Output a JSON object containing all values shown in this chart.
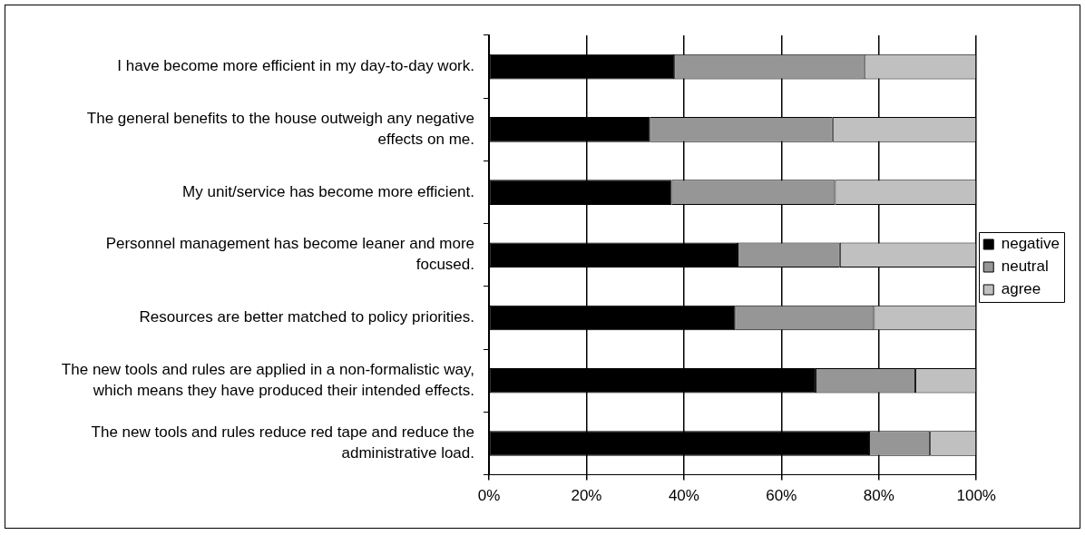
{
  "chart_data": {
    "type": "bar",
    "orientation": "horizontal",
    "stacked": true,
    "categories": [
      "I have become more efficient in my day-to-day work.",
      "The general benefits to the house outweigh any negative effects on me.",
      "My unit/service has become more efficient.",
      "Personnel management has become leaner and more focused.",
      "Resources are better matched to policy priorities.",
      "The new tools and rules are applied in a non-formalistic way, which means they have produced their intended effects.",
      "The new tools and rules reduce red tape and reduce the administrative load."
    ],
    "series": [
      {
        "name": "negative",
        "color": "#000000",
        "values": [
          38,
          33,
          37.5,
          51,
          50.5,
          67,
          78
        ]
      },
      {
        "name": "neutral",
        "color": "#969696",
        "values": [
          39,
          37.5,
          33.5,
          21,
          28.5,
          20.5,
          12.5
        ]
      },
      {
        "name": "agree",
        "color": "#c0c0c0",
        "values": [
          23,
          29.5,
          29,
          28,
          21,
          12.5,
          9.5
        ]
      }
    ],
    "xlim": [
      0,
      100
    ],
    "xticks": [
      {
        "value": 0,
        "label": "0%"
      },
      {
        "value": 20,
        "label": "20%"
      },
      {
        "value": 40,
        "label": "40%"
      },
      {
        "value": 60,
        "label": "60%"
      },
      {
        "value": 80,
        "label": "80%"
      },
      {
        "value": 100,
        "label": "100%"
      }
    ],
    "grid": "x",
    "legend": "right"
  }
}
